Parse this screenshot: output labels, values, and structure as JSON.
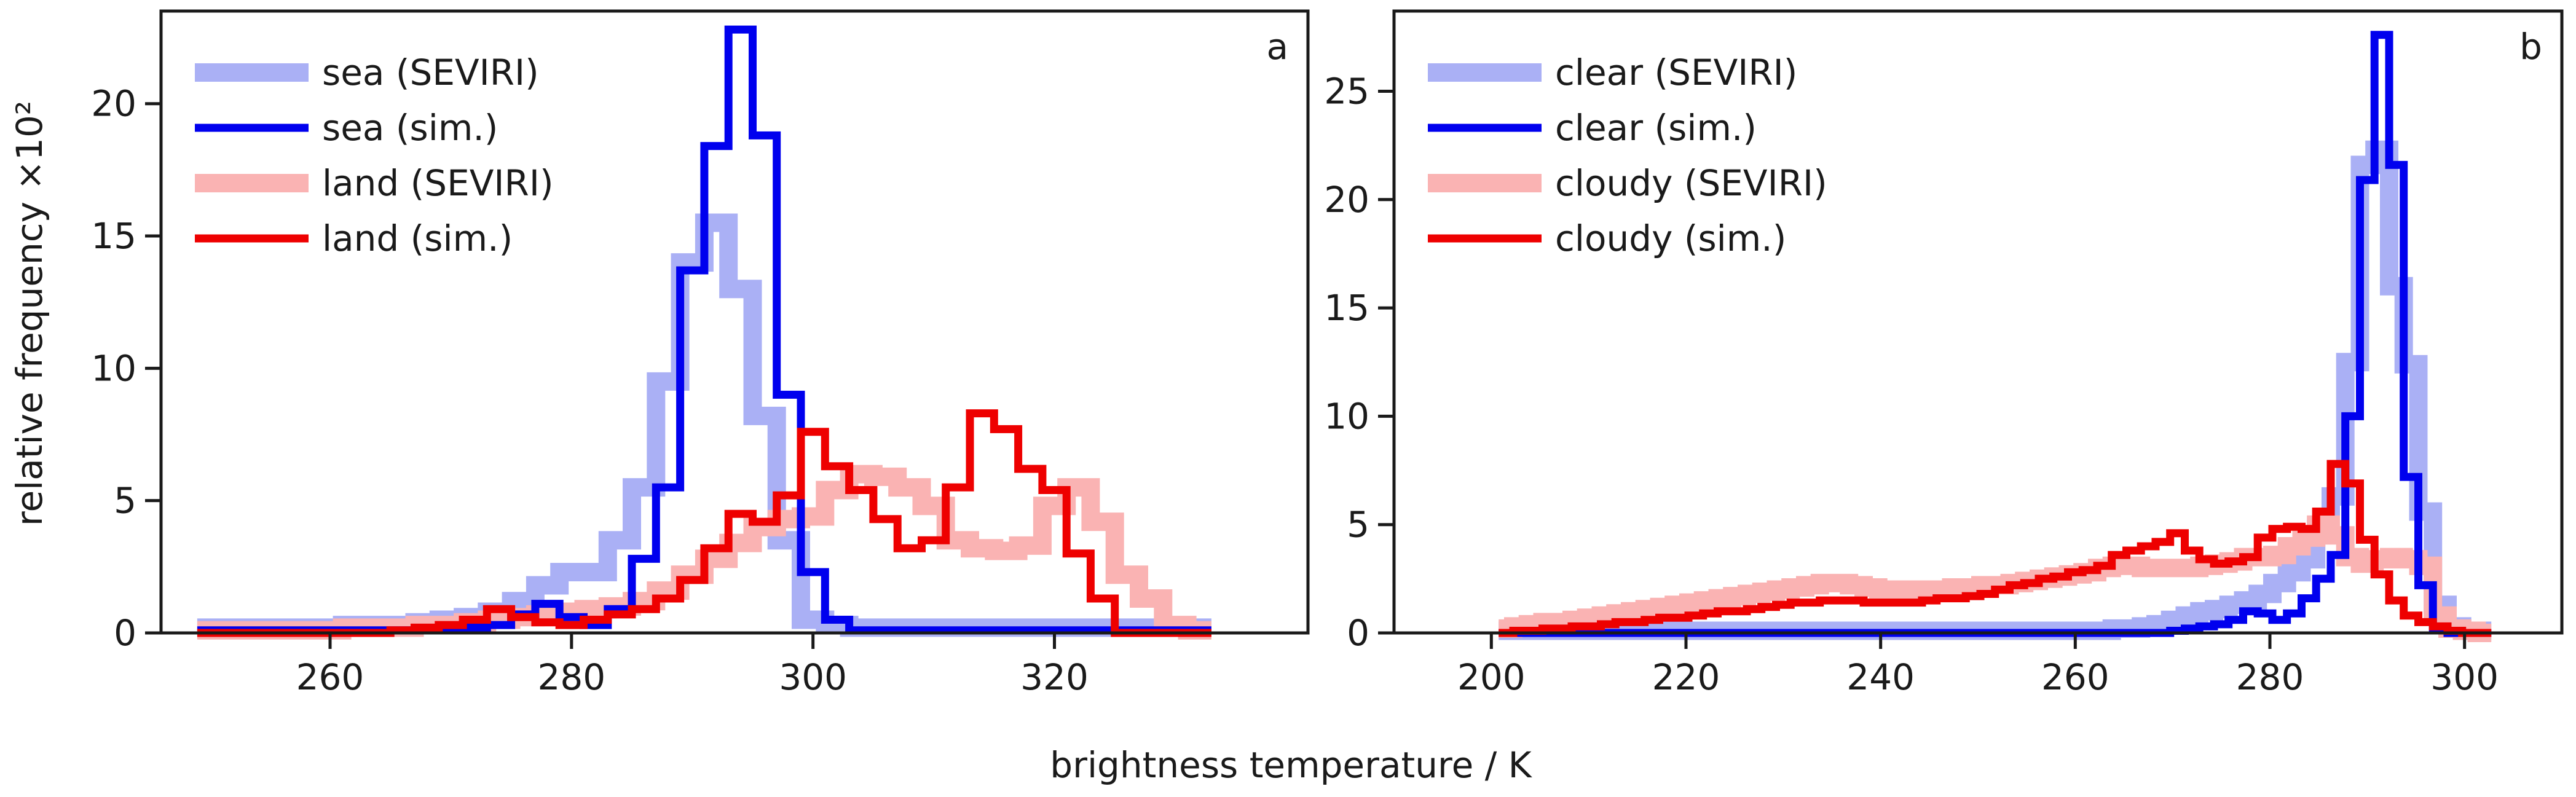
{
  "figure": {
    "xlabel": "brightness temperature / K",
    "ylabel": "relative frequency ×10²"
  },
  "chart_data": [
    {
      "type": "line",
      "panel_label": "a",
      "xlim": [
        246,
        341
      ],
      "ylim": [
        0,
        23.5
      ],
      "xticks": [
        260,
        280,
        300,
        320
      ],
      "yticks": [
        0,
        5,
        10,
        15,
        20
      ],
      "grid": false,
      "legend": "top-left",
      "bin_width": 2,
      "series": [
        {
          "name": "sea (SEVIRI)",
          "style": "thick",
          "color": "#aab0f5",
          "x": [
            250,
            252,
            254,
            256,
            258,
            260,
            262,
            264,
            266,
            268,
            270,
            272,
            274,
            276,
            278,
            280,
            282,
            284,
            286,
            288,
            290,
            292,
            294,
            296,
            298,
            300,
            302,
            304,
            306,
            308,
            310,
            312,
            314,
            316,
            318,
            320,
            322,
            324,
            326,
            328,
            330,
            332
          ],
          "values": [
            0.2,
            0.2,
            0.2,
            0.2,
            0.2,
            0.2,
            0.3,
            0.3,
            0.3,
            0.4,
            0.5,
            0.6,
            0.8,
            1.2,
            1.8,
            2.3,
            2.3,
            3.5,
            5.5,
            9.5,
            14,
            15.5,
            13,
            8.2,
            3.5,
            0.5,
            0.3,
            0.2,
            0.2,
            0.2,
            0.2,
            0.2,
            0.2,
            0.2,
            0.2,
            0.2,
            0.2,
            0.2,
            0.2,
            0.2,
            0.2,
            0.2
          ]
        },
        {
          "name": "sea (sim.)",
          "style": "thin",
          "color": "#0000ee",
          "x": [
            250,
            252,
            254,
            256,
            258,
            260,
            262,
            264,
            266,
            268,
            270,
            272,
            274,
            276,
            278,
            280,
            282,
            284,
            286,
            288,
            290,
            292,
            294,
            296,
            298,
            300,
            302,
            304,
            306,
            308,
            310,
            312,
            314,
            316,
            318,
            320,
            322,
            324,
            326,
            328,
            330,
            332
          ],
          "values": [
            0.1,
            0.1,
            0.1,
            0.1,
            0.1,
            0.1,
            0.1,
            0.1,
            0.1,
            0.1,
            0.1,
            0.2,
            0.3,
            0.7,
            1.1,
            0.6,
            0.3,
            0.9,
            2.8,
            5.5,
            13.7,
            18.4,
            22.8,
            18.8,
            9,
            2.3,
            0.5,
            0.1,
            0.1,
            0.1,
            0.1,
            0.1,
            0.1,
            0.1,
            0.1,
            0.1,
            0.1,
            0.1,
            0.1,
            0.1,
            0.1,
            0.1
          ]
        },
        {
          "name": "land (SEVIRI)",
          "style": "thick",
          "color": "#fab3b3",
          "x": [
            250,
            252,
            254,
            256,
            258,
            260,
            262,
            264,
            266,
            268,
            270,
            272,
            274,
            276,
            278,
            280,
            282,
            284,
            286,
            288,
            290,
            292,
            294,
            296,
            298,
            300,
            302,
            304,
            306,
            308,
            310,
            312,
            314,
            316,
            318,
            320,
            322,
            324,
            326,
            328,
            330,
            332
          ],
          "values": [
            0.1,
            0.1,
            0.1,
            0.1,
            0.1,
            0.1,
            0.2,
            0.2,
            0.2,
            0.3,
            0.3,
            0.4,
            0.5,
            0.6,
            0.7,
            0.8,
            0.9,
            1,
            1.2,
            1.6,
            2.2,
            2.8,
            3.4,
            4,
            4.3,
            4.4,
            5.4,
            6,
            5.9,
            5.5,
            4.8,
            3.5,
            3.2,
            3.1,
            3.3,
            4.8,
            5.5,
            4.2,
            2.2,
            1.3,
            0.3,
            0.1
          ]
        },
        {
          "name": "land (sim.)",
          "style": "thin",
          "color": "#ee0000",
          "x": [
            250,
            252,
            254,
            256,
            258,
            260,
            262,
            264,
            266,
            268,
            270,
            272,
            274,
            276,
            278,
            280,
            282,
            284,
            286,
            288,
            290,
            292,
            294,
            296,
            298,
            300,
            302,
            304,
            306,
            308,
            310,
            312,
            314,
            316,
            318,
            320,
            322,
            324,
            326,
            328,
            330,
            332
          ],
          "values": [
            0,
            0,
            0,
            0,
            0,
            0,
            0,
            0,
            0.1,
            0.2,
            0.3,
            0.5,
            0.9,
            0.6,
            0.4,
            0.3,
            0.5,
            0.7,
            0.9,
            1.3,
            2,
            3.2,
            4.5,
            4.2,
            5.2,
            7.6,
            6.3,
            5.4,
            4.3,
            3.2,
            3.5,
            5.5,
            8.3,
            7.7,
            6.2,
            5.4,
            3,
            1.3,
            0,
            0,
            0,
            0
          ]
        }
      ]
    },
    {
      "type": "line",
      "panel_label": "b",
      "xlim": [
        190,
        310
      ],
      "ylim": [
        0,
        28.7
      ],
      "xticks": [
        200,
        220,
        240,
        260,
        280,
        300
      ],
      "yticks": [
        0,
        5,
        10,
        15,
        20,
        25
      ],
      "grid": false,
      "legend": "top-left",
      "bin_width": 1.5,
      "series": [
        {
          "name": "clear (SEVIRI)",
          "style": "thick",
          "color": "#aab0f5",
          "x": [
            201.5,
            203,
            204.5,
            206,
            207.5,
            209,
            210.5,
            212,
            213.5,
            215,
            216.5,
            218,
            219.5,
            221,
            222.5,
            224,
            225.5,
            227,
            228.5,
            230,
            231.5,
            233,
            234.5,
            236,
            237.5,
            239,
            240.5,
            242,
            243.5,
            245,
            246.5,
            248,
            249.5,
            251,
            252.5,
            254,
            255.5,
            257,
            258.5,
            260,
            261.5,
            263,
            264.5,
            266,
            267.5,
            269,
            270.5,
            272,
            273.5,
            275,
            276.5,
            278,
            279.5,
            281,
            282.5,
            284,
            285.5,
            287,
            288.5,
            290,
            291.5,
            293,
            294.5,
            296,
            297.5,
            299,
            300.5,
            302
          ],
          "values": [
            0.1,
            0.1,
            0.1,
            0.1,
            0.1,
            0.1,
            0.1,
            0.1,
            0.1,
            0.1,
            0.1,
            0.1,
            0.1,
            0.1,
            0.1,
            0.1,
            0.1,
            0.1,
            0.1,
            0.1,
            0.1,
            0.1,
            0.1,
            0.1,
            0.1,
            0.1,
            0.1,
            0.1,
            0.1,
            0.1,
            0.1,
            0.1,
            0.1,
            0.1,
            0.1,
            0.1,
            0.1,
            0.1,
            0.1,
            0.1,
            0.1,
            0.1,
            0.2,
            0.2,
            0.3,
            0.4,
            0.6,
            0.8,
            1,
            1.1,
            1.3,
            1.5,
            1.8,
            2.3,
            2.8,
            3.4,
            4.8,
            6.3,
            12.5,
            21.6,
            22.3,
            16,
            12.4,
            5.6,
            1.3,
            0.3,
            0.1,
            0.1
          ]
        },
        {
          "name": "clear (sim.)",
          "style": "thin",
          "color": "#0000ee",
          "x": [
            201.5,
            203,
            204.5,
            206,
            207.5,
            209,
            210.5,
            212,
            213.5,
            215,
            216.5,
            218,
            219.5,
            221,
            222.5,
            224,
            225.5,
            227,
            228.5,
            230,
            231.5,
            233,
            234.5,
            236,
            237.5,
            239,
            240.5,
            242,
            243.5,
            245,
            246.5,
            248,
            249.5,
            251,
            252.5,
            254,
            255.5,
            257,
            258.5,
            260,
            261.5,
            263,
            264.5,
            266,
            267.5,
            269,
            270.5,
            272,
            273.5,
            275,
            276.5,
            278,
            279.5,
            281,
            282.5,
            284,
            285.5,
            287,
            288.5,
            290,
            291.5,
            293,
            294.5,
            296,
            297.5,
            299,
            300.5,
            302
          ],
          "values": [
            0,
            0,
            0,
            0,
            0,
            0,
            0,
            0,
            0,
            0,
            0,
            0,
            0,
            0,
            0,
            0,
            0,
            0,
            0,
            0,
            0,
            0,
            0,
            0,
            0,
            0,
            0,
            0,
            0,
            0,
            0,
            0,
            0,
            0,
            0,
            0,
            0,
            0,
            0,
            0,
            0,
            0,
            0,
            0,
            0,
            0,
            0.1,
            0.2,
            0.3,
            0.4,
            0.6,
            1,
            0.9,
            0.6,
            0.9,
            1.6,
            2.5,
            3.6,
            10,
            20.9,
            27.6,
            21.6,
            7.2,
            2.2,
            0.2,
            0,
            0,
            0
          ]
        },
        {
          "name": "cloudy (SEVIRI)",
          "style": "thick",
          "color": "#fab3b3",
          "x": [
            201.5,
            203,
            204.5,
            206,
            207.5,
            209,
            210.5,
            212,
            213.5,
            215,
            216.5,
            218,
            219.5,
            221,
            222.5,
            224,
            225.5,
            227,
            228.5,
            230,
            231.5,
            233,
            234.5,
            236,
            237.5,
            239,
            240.5,
            242,
            243.5,
            245,
            246.5,
            248,
            249.5,
            251,
            252.5,
            254,
            255.5,
            257,
            258.5,
            260,
            261.5,
            263,
            264.5,
            266,
            267.5,
            269,
            270.5,
            272,
            273.5,
            275,
            276.5,
            278,
            279.5,
            281,
            282.5,
            284,
            285.5,
            287,
            288.5,
            290,
            291.5,
            293,
            294.5,
            296,
            297.5,
            299,
            300.5,
            302
          ],
          "values": [
            0.2,
            0.3,
            0.4,
            0.5,
            0.5,
            0.6,
            0.7,
            0.8,
            0.9,
            1,
            1.1,
            1.2,
            1.3,
            1.4,
            1.5,
            1.6,
            1.7,
            1.8,
            1.9,
            2,
            2.1,
            2.2,
            2.3,
            2.3,
            2.2,
            2.1,
            2,
            2,
            2,
            2,
            2,
            2.1,
            2.1,
            2.2,
            2.2,
            2.3,
            2.4,
            2.5,
            2.6,
            2.7,
            2.8,
            3,
            3.1,
            3.1,
            3,
            3,
            3,
            3,
            3.1,
            3.2,
            3.3,
            3.5,
            3.5,
            3.6,
            4,
            4.4,
            5,
            4.5,
            3.5,
            3.2,
            3.4,
            3.5,
            3.4,
            3.1,
            0.8,
            0.2,
            0.1,
            0
          ]
        },
        {
          "name": "cloudy (sim.)",
          "style": "thin",
          "color": "#ee0000",
          "x": [
            201.5,
            203,
            204.5,
            206,
            207.5,
            209,
            210.5,
            212,
            213.5,
            215,
            216.5,
            218,
            219.5,
            221,
            222.5,
            224,
            225.5,
            227,
            228.5,
            230,
            231.5,
            233,
            234.5,
            236,
            237.5,
            239,
            240.5,
            242,
            243.5,
            245,
            246.5,
            248,
            249.5,
            251,
            252.5,
            254,
            255.5,
            257,
            258.5,
            260,
            261.5,
            263,
            264.5,
            266,
            267.5,
            269,
            270.5,
            272,
            273.5,
            275,
            276.5,
            278,
            279.5,
            281,
            282.5,
            284,
            285.5,
            287,
            288.5,
            290,
            291.5,
            293,
            294.5,
            296,
            297.5,
            299,
            300.5,
            302
          ],
          "values": [
            0,
            0.1,
            0.1,
            0.2,
            0.2,
            0.3,
            0.3,
            0.4,
            0.5,
            0.5,
            0.6,
            0.7,
            0.7,
            0.8,
            0.9,
            1,
            1,
            1.1,
            1.2,
            1.3,
            1.4,
            1.4,
            1.5,
            1.5,
            1.5,
            1.4,
            1.4,
            1.4,
            1.4,
            1.5,
            1.6,
            1.6,
            1.7,
            1.8,
            2,
            2.2,
            2.3,
            2.5,
            2.6,
            2.8,
            2.9,
            3.1,
            3.6,
            3.8,
            4,
            4.2,
            4.6,
            3.8,
            3.4,
            3.2,
            3.3,
            3.5,
            4.4,
            4.8,
            4.9,
            4.8,
            5.6,
            7.8,
            6.9,
            4.3,
            2.7,
            1.5,
            0.8,
            0.5,
            0.3,
            0.1,
            0,
            0
          ]
        }
      ]
    }
  ]
}
